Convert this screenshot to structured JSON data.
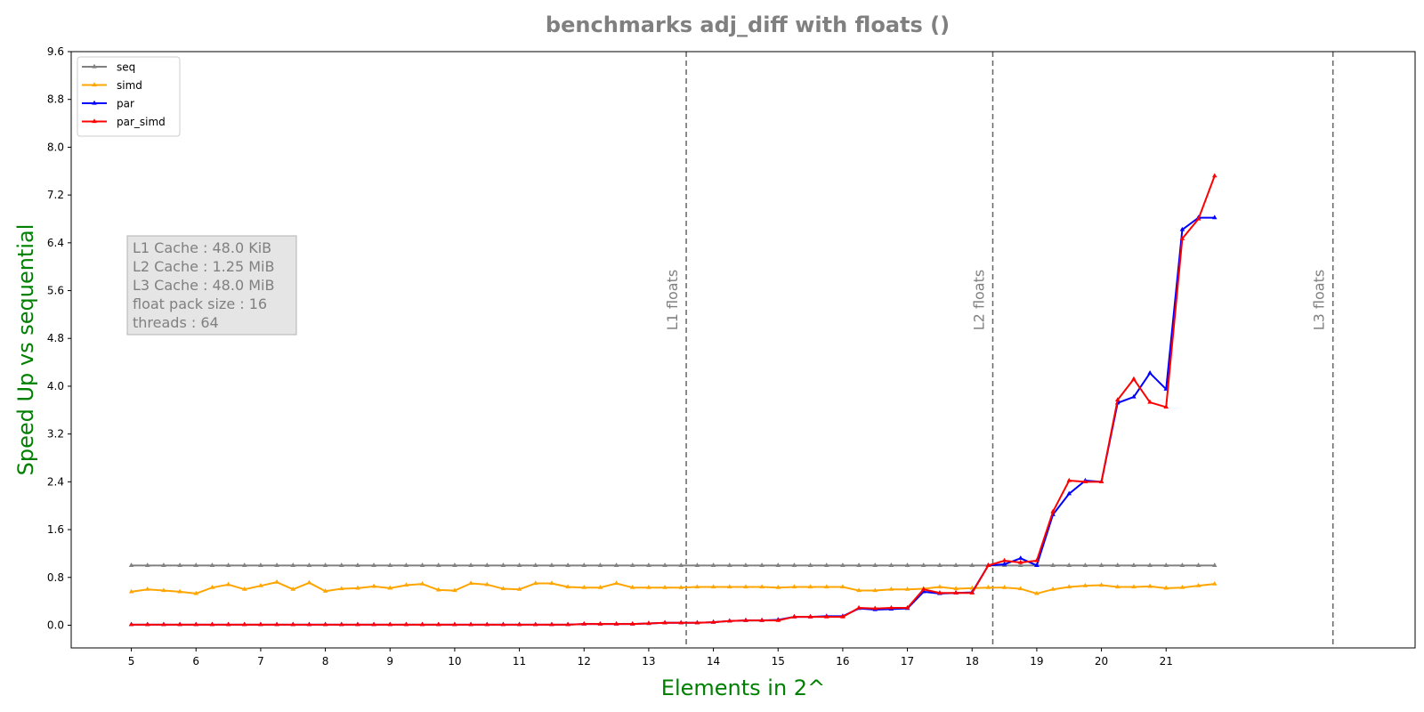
{
  "chart_data": {
    "type": "line",
    "title": "benchmarks adj_diff with floats  ()",
    "xlabel": "Elements in 2^",
    "ylabel": "Speed Up vs sequential",
    "xlim": [
      4.07,
      24.85
    ],
    "ylim": [
      -0.38,
      9.6
    ],
    "x_ticks": [
      5,
      6,
      7,
      8,
      9,
      10,
      11,
      12,
      13,
      14,
      15,
      16,
      17,
      18,
      19,
      20,
      21
    ],
    "y_ticks": [
      0.0,
      0.8,
      1.6,
      2.4,
      3.2,
      4.0,
      4.8,
      5.6,
      6.4,
      7.2,
      8.0,
      8.8,
      9.6
    ],
    "grid": false,
    "legend_position": "top-left",
    "series_colors": {
      "seq": "#808080",
      "simd": "#ffa500",
      "par": "#0000ff",
      "par_simd": "#ff0000"
    },
    "x": [
      5,
      5.25,
      5.5,
      5.75,
      6,
      6.25,
      6.5,
      6.75,
      7,
      7.25,
      7.5,
      7.75,
      8,
      8.25,
      8.5,
      8.75,
      9,
      9.25,
      9.5,
      9.75,
      10,
      10.25,
      10.5,
      10.75,
      11,
      11.25,
      11.5,
      11.75,
      12,
      12.25,
      12.5,
      12.75,
      13,
      13.25,
      13.5,
      13.75,
      14,
      14.25,
      14.5,
      14.75,
      15,
      15.25,
      15.5,
      15.75,
      16,
      16.25,
      16.5,
      16.75,
      17,
      17.25,
      17.5,
      17.75,
      18,
      18.25,
      18.5,
      18.75,
      19,
      19.25,
      19.5,
      19.75,
      20,
      20.25,
      20.5,
      20.75,
      21,
      21.25,
      21.5,
      21.75
    ],
    "series": [
      {
        "name": "seq",
        "values": [
          1.0,
          1.0,
          1.0,
          1.0,
          1.0,
          1.0,
          1.0,
          1.0,
          1.0,
          1.0,
          1.0,
          1.0,
          1.0,
          1.0,
          1.0,
          1.0,
          1.0,
          1.0,
          1.0,
          1.0,
          1.0,
          1.0,
          1.0,
          1.0,
          1.0,
          1.0,
          1.0,
          1.0,
          1.0,
          1.0,
          1.0,
          1.0,
          1.0,
          1.0,
          1.0,
          1.0,
          1.0,
          1.0,
          1.0,
          1.0,
          1.0,
          1.0,
          1.0,
          1.0,
          1.0,
          1.0,
          1.0,
          1.0,
          1.0,
          1.0,
          1.0,
          1.0,
          1.0,
          1.0,
          1.0,
          1.0,
          1.0,
          1.0,
          1.0,
          1.0,
          1.0,
          1.0,
          1.0,
          1.0,
          1.0,
          1.0,
          1.0,
          1.0
        ]
      },
      {
        "name": "simd",
        "values": [
          0.56,
          0.6,
          0.58,
          0.56,
          0.53,
          0.63,
          0.68,
          0.6,
          0.66,
          0.72,
          0.6,
          0.71,
          0.57,
          0.61,
          0.62,
          0.65,
          0.62,
          0.67,
          0.69,
          0.59,
          0.58,
          0.7,
          0.68,
          0.61,
          0.6,
          0.7,
          0.7,
          0.64,
          0.63,
          0.63,
          0.7,
          0.63,
          0.63,
          0.63,
          0.63,
          0.64,
          0.64,
          0.64,
          0.64,
          0.64,
          0.63,
          0.64,
          0.64,
          0.64,
          0.64,
          0.58,
          0.58,
          0.6,
          0.6,
          0.61,
          0.64,
          0.61,
          0.62,
          0.63,
          0.63,
          0.61,
          0.53,
          0.6,
          0.64,
          0.66,
          0.67,
          0.64,
          0.64,
          0.65,
          0.62,
          0.63,
          0.66,
          0.69
        ]
      },
      {
        "name": "par",
        "values": [
          0.01,
          0.01,
          0.01,
          0.01,
          0.01,
          0.01,
          0.01,
          0.01,
          0.01,
          0.01,
          0.01,
          0.01,
          0.01,
          0.01,
          0.01,
          0.01,
          0.01,
          0.01,
          0.01,
          0.01,
          0.01,
          0.01,
          0.01,
          0.01,
          0.01,
          0.01,
          0.01,
          0.01,
          0.02,
          0.02,
          0.02,
          0.02,
          0.03,
          0.04,
          0.04,
          0.04,
          0.05,
          0.07,
          0.08,
          0.08,
          0.09,
          0.14,
          0.14,
          0.15,
          0.15,
          0.28,
          0.26,
          0.27,
          0.28,
          0.56,
          0.53,
          0.54,
          0.55,
          1.0,
          1.02,
          1.12,
          1.0,
          1.85,
          2.2,
          2.42,
          2.4,
          3.72,
          3.82,
          4.22,
          3.95,
          6.62,
          6.82,
          6.82
        ]
      },
      {
        "name": "par_simd",
        "values": [
          0.01,
          0.01,
          0.01,
          0.01,
          0.01,
          0.01,
          0.01,
          0.01,
          0.01,
          0.01,
          0.01,
          0.01,
          0.01,
          0.01,
          0.01,
          0.01,
          0.01,
          0.01,
          0.01,
          0.01,
          0.01,
          0.01,
          0.01,
          0.01,
          0.01,
          0.01,
          0.01,
          0.01,
          0.02,
          0.02,
          0.02,
          0.02,
          0.03,
          0.04,
          0.04,
          0.04,
          0.05,
          0.07,
          0.08,
          0.08,
          0.08,
          0.14,
          0.14,
          0.14,
          0.14,
          0.29,
          0.28,
          0.29,
          0.29,
          0.6,
          0.54,
          0.54,
          0.54,
          1.0,
          1.08,
          1.05,
          1.08,
          1.9,
          2.42,
          2.4,
          2.4,
          3.77,
          4.12,
          3.73,
          3.65,
          6.47,
          6.8,
          7.52
        ]
      }
    ],
    "cache_lines": [
      {
        "label": "L1 floats",
        "x": 13.58
      },
      {
        "label": "L2 floats",
        "x": 18.32
      },
      {
        "label": "L3 floats",
        "x": 23.58
      }
    ],
    "info_box": [
      "L1 Cache : 48.0 KiB",
      "L2 Cache : 1.25 MiB",
      "L3 Cache : 48.0 MiB",
      "float pack size : 16",
      "threads : 64"
    ]
  }
}
